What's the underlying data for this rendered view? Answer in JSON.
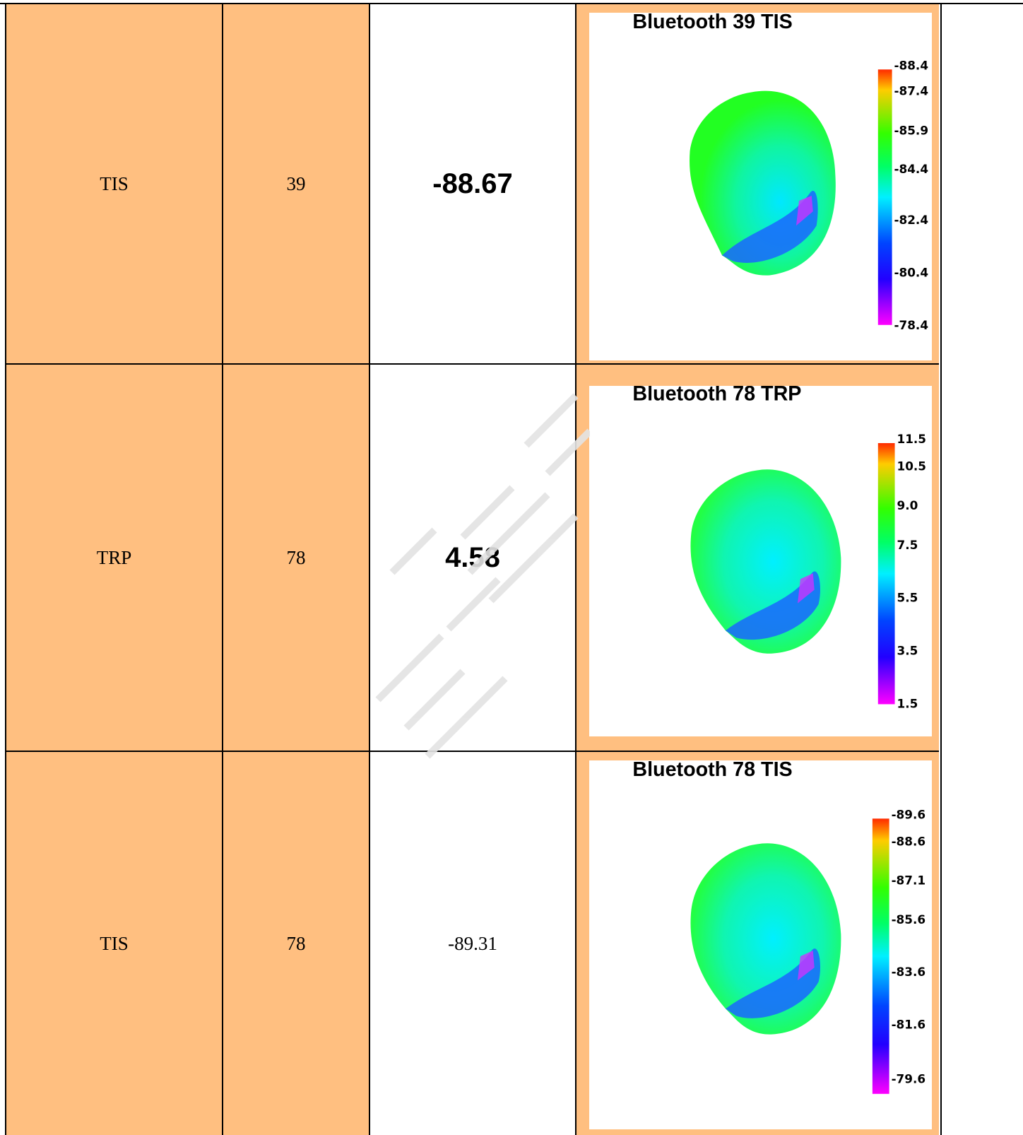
{
  "rows": [
    {
      "measurement": "TIS",
      "channel": "39",
      "value": "-88.67",
      "plot": {
        "title": "Bluetooth 39 TIS",
        "colorbar_ticks": [
          "-88.4",
          "-87.4",
          "-85.9",
          "-84.4",
          "-82.4",
          "-80.4",
          "-78.4"
        ]
      }
    },
    {
      "measurement": "TRP",
      "channel": "78",
      "value": "4.58",
      "plot": {
        "title": "Bluetooth 78 TRP",
        "colorbar_ticks": [
          "11.5",
          "10.5",
          "9.0",
          "7.5",
          "5.5",
          "3.5",
          "1.5"
        ]
      }
    },
    {
      "measurement": "TIS",
      "channel": "78",
      "value": "-89.31",
      "plot": {
        "title": "Bluetooth 78 TIS",
        "colorbar_ticks": [
          "-89.6",
          "-88.6",
          "-87.1",
          "-85.6",
          "-83.6",
          "-81.6",
          "-79.6"
        ]
      }
    }
  ],
  "colors": {
    "cell_fill": "#ffbf80",
    "border": "#000000"
  }
}
